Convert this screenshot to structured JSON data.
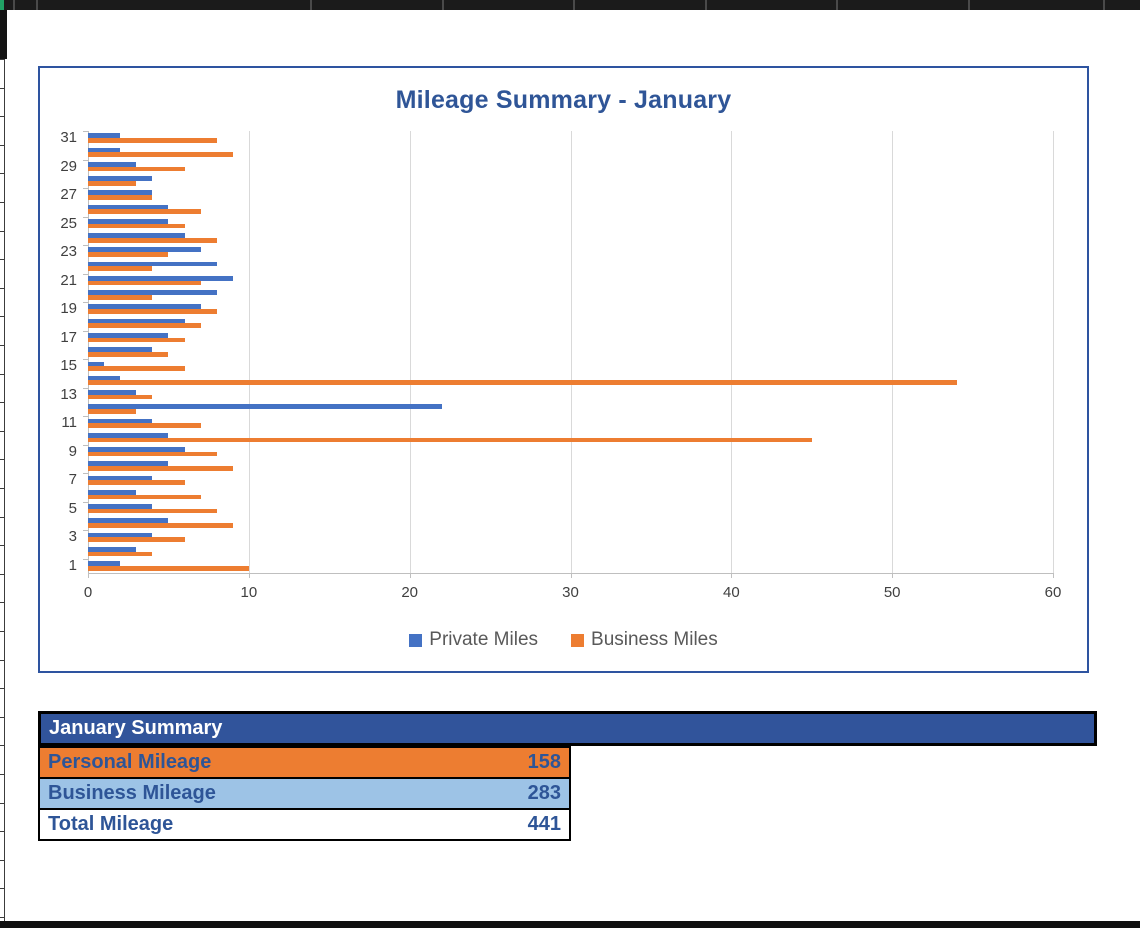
{
  "chart": {
    "title": "Mileage Summary - January",
    "legend": [
      {
        "label": "Private Miles",
        "color": "#4472C4"
      },
      {
        "label": "Business Miles",
        "color": "#ED7D31"
      }
    ],
    "colors": {
      "title": "#2F5597",
      "frame_border": "#2E54A0",
      "gridline": "#D9D9D9",
      "axis_line": "#BFBFBF",
      "axis_text": "#404040",
      "legend_text": "#595959"
    }
  },
  "chart_data": {
    "type": "bar",
    "orientation": "horizontal",
    "title": "Mileage Summary - January",
    "categories": [
      1,
      2,
      3,
      4,
      5,
      6,
      7,
      8,
      9,
      10,
      11,
      12,
      13,
      14,
      15,
      16,
      17,
      18,
      19,
      20,
      21,
      22,
      23,
      24,
      25,
      26,
      27,
      28,
      29,
      30,
      31
    ],
    "category_label_interval": 2,
    "xlim": [
      0,
      60
    ],
    "x_ticks": [
      0,
      10,
      20,
      30,
      40,
      50,
      60
    ],
    "grid": true,
    "legend_position": "bottom",
    "series": [
      {
        "name": "Private Miles",
        "color": "#4472C4",
        "values": [
          2,
          3,
          4,
          5,
          4,
          3,
          4,
          5,
          6,
          5,
          4,
          22,
          3,
          2,
          1,
          4,
          5,
          6,
          7,
          8,
          9,
          8,
          7,
          6,
          5,
          5,
          4,
          4,
          3,
          2,
          2
        ],
        "total": 158
      },
      {
        "name": "Business Miles",
        "color": "#ED7D31",
        "values": [
          10,
          4,
          6,
          9,
          8,
          7,
          6,
          9,
          8,
          45,
          7,
          3,
          4,
          54,
          6,
          5,
          6,
          7,
          8,
          4,
          7,
          4,
          5,
          8,
          6,
          7,
          4,
          3,
          6,
          9,
          8
        ],
        "total": 283
      }
    ]
  },
  "summary": {
    "header": "January Summary",
    "rows": [
      {
        "label": "Personal Mileage",
        "value": "158",
        "bg": "#ED7D31"
      },
      {
        "label": "Business Mileage",
        "value": "283",
        "bg": "#9DC3E6"
      },
      {
        "label": "Total Mileage",
        "value": "441",
        "bg": "#FFFFFF"
      }
    ],
    "colors": {
      "header_bg": "#31549B",
      "header_text": "#FFFFFF",
      "row_text": "#2E5597",
      "border": "#000000"
    }
  }
}
